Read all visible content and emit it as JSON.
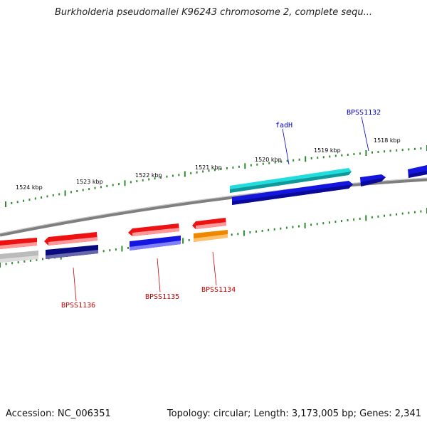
{
  "title": "Burkholderia pseudomallei K96243 chromosome 2, complete sequ...",
  "footer": {
    "accession": "Accession: NC_006351",
    "topology": "Topology: circular; Length: 3,173,005 bp; Genes: 2,341"
  },
  "scale_ticks": [
    "1524 kbp",
    "1523 kbp",
    "1522 kbp",
    "1521 kbp",
    "1520 kbp",
    "1519 kbp",
    "1518 kbp"
  ],
  "genes": {
    "fadH": "fadH",
    "BPSS1132": "BPSS1132",
    "BPSS1136": "BPSS1136",
    "BPSS1135": "BPSS1135",
    "BPSS1134": "BPSS1134"
  },
  "colors": {
    "backbone": "#808080",
    "ticks": "#2e8b2e",
    "forward_red": "#ee1111",
    "reverse_blue": "#1515e0",
    "navy": "#0a0a80",
    "cyan": "#22dddd",
    "orange": "#ee8800",
    "gray": "#bbbbbb",
    "label_blue": "#0000cc",
    "label_red": "#cc0000"
  }
}
